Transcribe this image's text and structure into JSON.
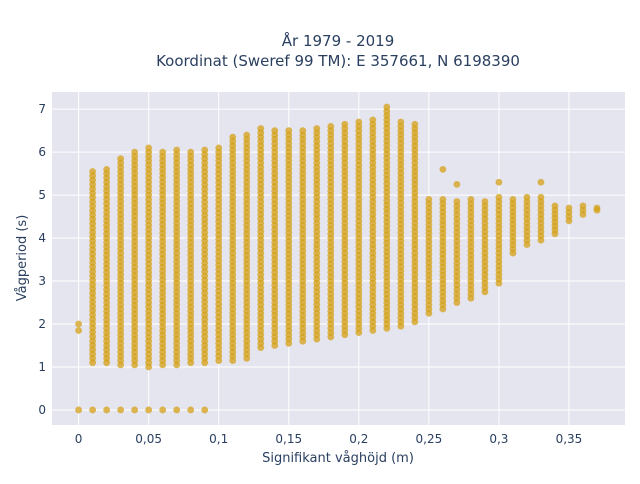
{
  "chart_data": {
    "type": "scatter",
    "title_line1": "År 1979 - 2019",
    "title_line2": "Koordinat (Sweref 99 TM): E 357661, N 6198390",
    "xlabel": "Signifikant våghöjd (m)",
    "ylabel": "Vågperiod (s)",
    "xlim": [
      -0.019,
      0.39
    ],
    "ylim": [
      -0.35,
      7.4
    ],
    "x_ticks": [
      0,
      0.05,
      0.1,
      0.15,
      0.2,
      0.25,
      0.3,
      0.35
    ],
    "x_tick_labels": [
      "0",
      "0,05",
      "0,1",
      "0,15",
      "0,2",
      "0,25",
      "0,3",
      "0,35"
    ],
    "y_ticks": [
      0,
      1,
      2,
      3,
      4,
      5,
      6,
      7
    ],
    "y_tick_labels": [
      "0",
      "1",
      "2",
      "3",
      "4",
      "5",
      "6",
      "7"
    ],
    "grid": true,
    "colors": {
      "marker": "#D4A017",
      "plot_bg": "#E5E5EF",
      "grid": "#ffffff",
      "text": "#2a3f5f"
    },
    "columns": [
      {
        "x": 0.0,
        "y_min": 1.85,
        "y_max": 2.0,
        "extra": [
          0
        ]
      },
      {
        "x": 0.01,
        "y_min": 1.1,
        "y_max": 5.55,
        "extra": [
          0
        ]
      },
      {
        "x": 0.02,
        "y_min": 1.1,
        "y_max": 5.6,
        "extra": [
          0
        ]
      },
      {
        "x": 0.03,
        "y_min": 1.05,
        "y_max": 5.85,
        "extra": [
          0
        ]
      },
      {
        "x": 0.04,
        "y_min": 1.05,
        "y_max": 6.0,
        "extra": [
          0
        ]
      },
      {
        "x": 0.05,
        "y_min": 1.0,
        "y_max": 6.1,
        "extra": [
          0
        ]
      },
      {
        "x": 0.06,
        "y_min": 1.05,
        "y_max": 6.0,
        "extra": [
          0
        ]
      },
      {
        "x": 0.07,
        "y_min": 1.05,
        "y_max": 6.05,
        "extra": [
          0
        ]
      },
      {
        "x": 0.08,
        "y_min": 1.1,
        "y_max": 6.0,
        "extra": [
          0
        ]
      },
      {
        "x": 0.09,
        "y_min": 1.1,
        "y_max": 6.05,
        "extra": [
          0
        ]
      },
      {
        "x": 0.1,
        "y_min": 1.15,
        "y_max": 6.1,
        "extra": []
      },
      {
        "x": 0.11,
        "y_min": 1.15,
        "y_max": 6.35,
        "extra": []
      },
      {
        "x": 0.12,
        "y_min": 1.2,
        "y_max": 6.4,
        "extra": []
      },
      {
        "x": 0.13,
        "y_min": 1.45,
        "y_max": 6.55,
        "extra": []
      },
      {
        "x": 0.14,
        "y_min": 1.5,
        "y_max": 6.5,
        "extra": []
      },
      {
        "x": 0.15,
        "y_min": 1.55,
        "y_max": 6.5,
        "extra": []
      },
      {
        "x": 0.16,
        "y_min": 1.6,
        "y_max": 6.5,
        "extra": []
      },
      {
        "x": 0.17,
        "y_min": 1.65,
        "y_max": 6.55,
        "extra": []
      },
      {
        "x": 0.18,
        "y_min": 1.7,
        "y_max": 6.6,
        "extra": []
      },
      {
        "x": 0.19,
        "y_min": 1.75,
        "y_max": 6.65,
        "extra": []
      },
      {
        "x": 0.2,
        "y_min": 1.8,
        "y_max": 6.7,
        "extra": []
      },
      {
        "x": 0.21,
        "y_min": 1.85,
        "y_max": 6.75,
        "extra": []
      },
      {
        "x": 0.22,
        "y_min": 1.9,
        "y_max": 7.05,
        "extra": []
      },
      {
        "x": 0.23,
        "y_min": 1.95,
        "y_max": 6.7,
        "extra": []
      },
      {
        "x": 0.24,
        "y_min": 2.05,
        "y_max": 6.65,
        "extra": []
      },
      {
        "x": 0.25,
        "y_min": 2.25,
        "y_max": 4.9,
        "extra": []
      },
      {
        "x": 0.26,
        "y_min": 2.35,
        "y_max": 4.9,
        "extra": [
          5.6
        ]
      },
      {
        "x": 0.27,
        "y_min": 2.5,
        "y_max": 4.85,
        "extra": [
          5.25
        ]
      },
      {
        "x": 0.28,
        "y_min": 2.6,
        "y_max": 4.9,
        "extra": []
      },
      {
        "x": 0.29,
        "y_min": 2.75,
        "y_max": 4.85,
        "extra": []
      },
      {
        "x": 0.3,
        "y_min": 2.95,
        "y_max": 4.95,
        "extra": [
          5.3
        ]
      },
      {
        "x": 0.31,
        "y_min": 3.65,
        "y_max": 4.9,
        "extra": []
      },
      {
        "x": 0.32,
        "y_min": 3.85,
        "y_max": 4.95,
        "extra": []
      },
      {
        "x": 0.33,
        "y_min": 3.95,
        "y_max": 4.95,
        "extra": [
          5.3
        ]
      },
      {
        "x": 0.34,
        "y_min": 4.1,
        "y_max": 4.75,
        "extra": []
      },
      {
        "x": 0.35,
        "y_min": 4.4,
        "y_max": 4.7,
        "extra": []
      },
      {
        "x": 0.36,
        "y_min": 4.55,
        "y_max": 4.75,
        "extra": []
      },
      {
        "x": 0.37,
        "y_min": 4.65,
        "y_max": 4.7,
        "extra": []
      }
    ]
  }
}
